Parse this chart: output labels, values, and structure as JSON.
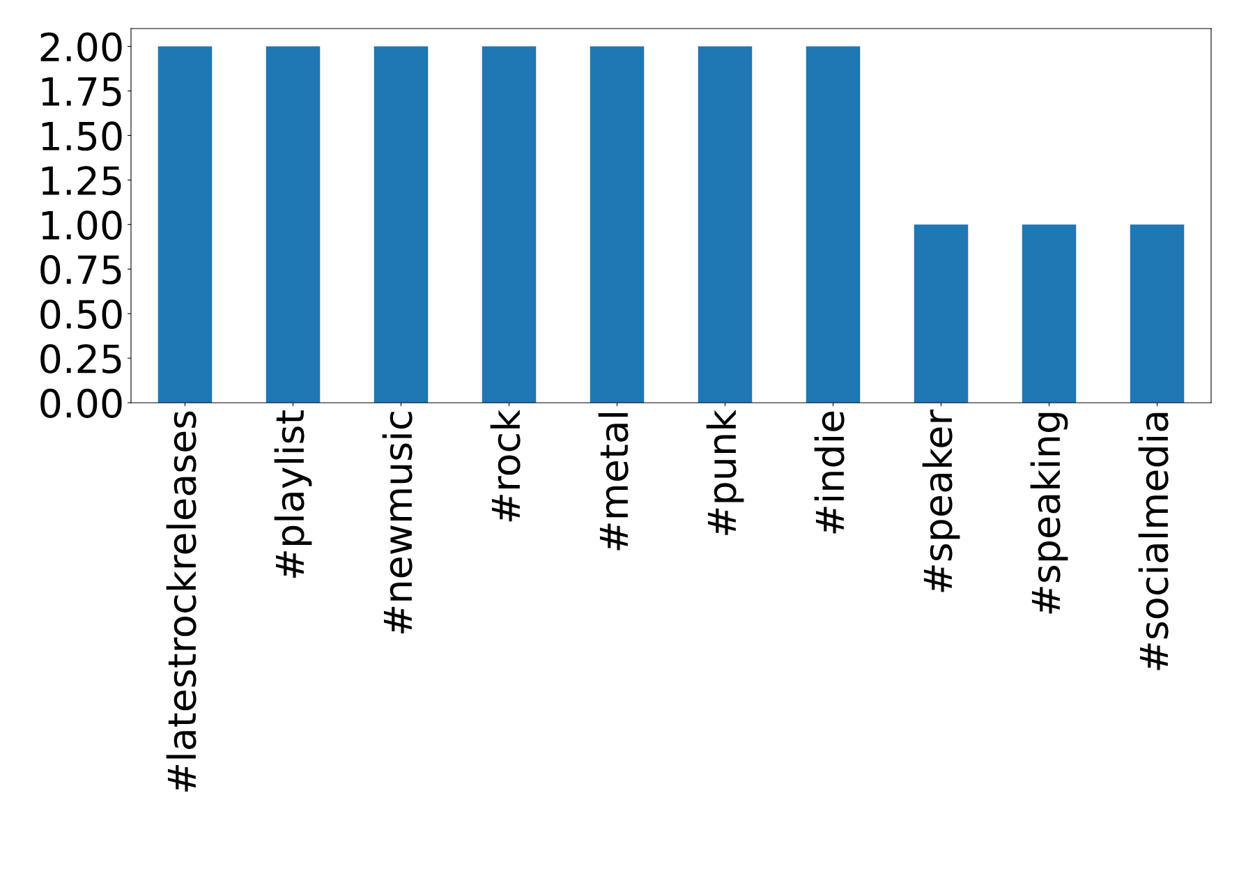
{
  "chart_data": {
    "type": "bar",
    "categories": [
      "#latestrockreleases",
      "#playlist",
      "#newmusic",
      "#rock",
      "#metal",
      "#punk",
      "#indie",
      "#speaker",
      "#speaking",
      "#socialmedia"
    ],
    "values": [
      2,
      2,
      2,
      2,
      2,
      2,
      2,
      1,
      1,
      1
    ],
    "color": "#1f77b4",
    "ylim": [
      0,
      2.1
    ],
    "yticks": [
      {
        "value": 0,
        "label": "0.00"
      },
      {
        "value": 0.25,
        "label": "0.25"
      },
      {
        "value": 0.5,
        "label": "0.50"
      },
      {
        "value": 0.75,
        "label": "0.75"
      },
      {
        "value": 1,
        "label": "1.00"
      },
      {
        "value": 1.25,
        "label": "1.25"
      },
      {
        "value": 1.5,
        "label": "1.50"
      },
      {
        "value": 1.75,
        "label": "1.75"
      },
      {
        "value": 2,
        "label": "2.00"
      }
    ],
    "grid": false,
    "legend": false
  }
}
